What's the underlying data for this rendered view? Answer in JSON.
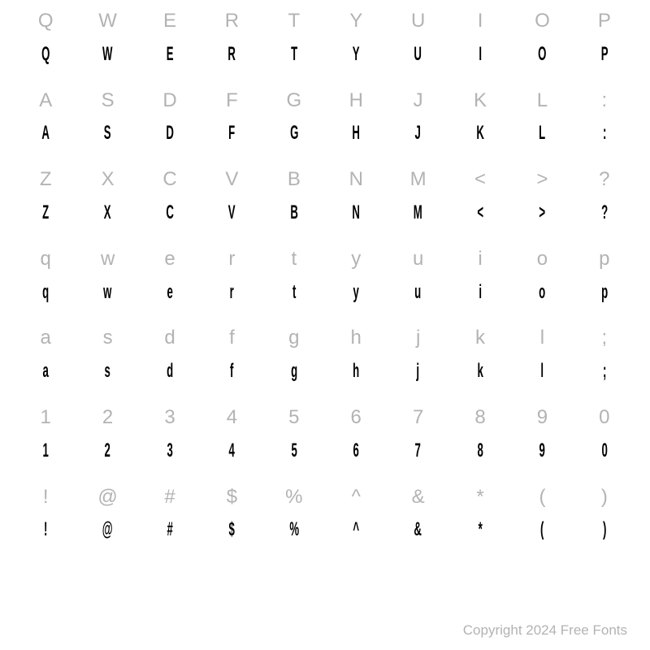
{
  "rows": [
    {
      "ref": [
        "Q",
        "W",
        "E",
        "R",
        "T",
        "Y",
        "U",
        "I",
        "O",
        "P"
      ],
      "sample": [
        "Q",
        "W",
        "E",
        "R",
        "T",
        "Y",
        "U",
        "I",
        "O",
        "P"
      ]
    },
    {
      "ref": [
        "A",
        "S",
        "D",
        "F",
        "G",
        "H",
        "J",
        "K",
        "L",
        ":"
      ],
      "sample": [
        "A",
        "S",
        "D",
        "F",
        "G",
        "H",
        "J",
        "K",
        "L",
        ":"
      ]
    },
    {
      "ref": [
        "Z",
        "X",
        "C",
        "V",
        "B",
        "N",
        "M",
        "<",
        ">",
        "?"
      ],
      "sample": [
        "Z",
        "X",
        "C",
        "V",
        "B",
        "N",
        "M",
        "<",
        ">",
        "?"
      ]
    },
    {
      "ref": [
        "q",
        "w",
        "e",
        "r",
        "t",
        "y",
        "u",
        "i",
        "o",
        "p"
      ],
      "sample": [
        "q",
        "w",
        "e",
        "r",
        "t",
        "y",
        "u",
        "i",
        "o",
        "p"
      ]
    },
    {
      "ref": [
        "a",
        "s",
        "d",
        "f",
        "g",
        "h",
        "j",
        "k",
        "l",
        ";"
      ],
      "sample": [
        "a",
        "s",
        "d",
        "f",
        "g",
        "h",
        "j",
        "k",
        "l",
        ";"
      ]
    },
    {
      "ref": [
        "1",
        "2",
        "3",
        "4",
        "5",
        "6",
        "7",
        "8",
        "9",
        "0"
      ],
      "sample": [
        "1",
        "2",
        "3",
        "4",
        "5",
        "6",
        "7",
        "8",
        "9",
        "0"
      ]
    },
    {
      "ref": [
        "!",
        "@",
        "#",
        "$",
        "%",
        "^",
        "&",
        "*",
        "(",
        ")"
      ],
      "sample": [
        "!",
        "@",
        "#",
        "$",
        "%",
        "^",
        "&",
        "*",
        "(",
        ")"
      ]
    }
  ],
  "copyright": "Copyright 2024 Free Fonts",
  "colors": {
    "ref_text": "#b3b3b3",
    "sample_text": "#000000",
    "background": "#ffffff"
  },
  "layout": {
    "columns": 10,
    "row_pairs": 7,
    "cell_fontsize": 24
  }
}
